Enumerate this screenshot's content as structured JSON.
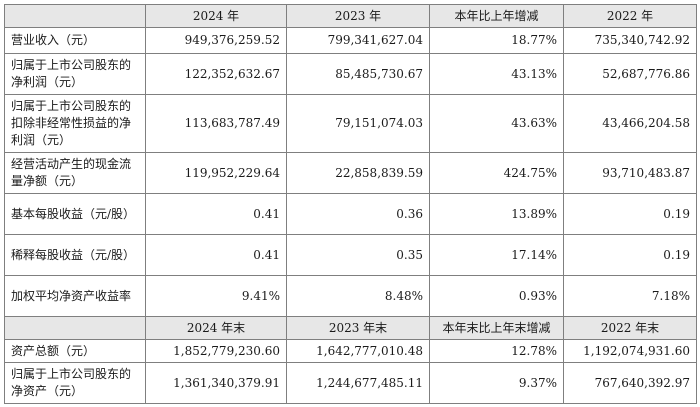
{
  "header1": [
    "",
    "2024 年",
    "2023 年",
    "本年比上年增减",
    "2022 年"
  ],
  "rows1": [
    {
      "label": "营业收入（元）",
      "values": [
        "949,376,259.52",
        "799,341,627.04",
        "18.77%",
        "735,340,742.92"
      ]
    },
    {
      "label": "归属于上市公司股东的净利润（元）",
      "values": [
        "122,352,632.67",
        "85,485,730.67",
        "43.13%",
        "52,687,776.86"
      ]
    },
    {
      "label": "归属于上市公司股东的扣除非经常性损益的净利润（元）",
      "values": [
        "113,683,787.49",
        "79,151,074.03",
        "43.63%",
        "43,466,204.58"
      ]
    },
    {
      "label": "经营活动产生的现金流量净额（元）",
      "values": [
        "119,952,229.64",
        "22,858,839.59",
        "424.75%",
        "93,710,483.87"
      ]
    },
    {
      "label": "基本每股收益（元/股）",
      "values": [
        "0.41",
        "0.36",
        "13.89%",
        "0.19"
      ]
    },
    {
      "label": "稀释每股收益（元/股）",
      "values": [
        "0.41",
        "0.35",
        "17.14%",
        "0.19"
      ]
    },
    {
      "label": "加权平均净资产收益率",
      "values": [
        "9.41%",
        "8.48%",
        "0.93%",
        "7.18%"
      ]
    }
  ],
  "header2": [
    "",
    "2024 年末",
    "2023 年末",
    "本年末比上年末增减",
    "2022 年末"
  ],
  "rows2": [
    {
      "label": "资产总额（元）",
      "values": [
        "1,852,779,230.60",
        "1,642,777,010.48",
        "12.78%",
        "1,192,074,931.60"
      ]
    },
    {
      "label": "归属于上市公司股东的净资产（元）",
      "values": [
        "1,361,340,379.91",
        "1,244,677,485.11",
        "9.37%",
        "767,640,392.97"
      ]
    }
  ]
}
